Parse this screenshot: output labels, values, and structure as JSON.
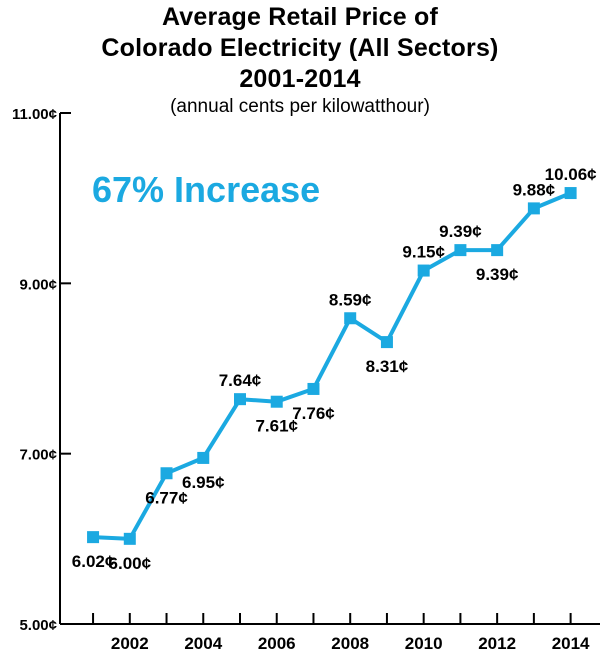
{
  "chart_data": {
    "type": "line",
    "title_lines": [
      "Average Retail Price of",
      "Colorado Electricity (All Sectors)",
      "2001-2014"
    ],
    "subtitle": "(annual cents per kilowatthour)",
    "x": [
      2001,
      2002,
      2003,
      2004,
      2005,
      2006,
      2007,
      2008,
      2009,
      2010,
      2011,
      2012,
      2013,
      2014
    ],
    "values": [
      6.02,
      6.0,
      6.77,
      6.95,
      7.64,
      7.61,
      7.76,
      8.59,
      8.31,
      9.15,
      9.39,
      9.39,
      9.88,
      10.06
    ],
    "data_labels": [
      "6.02¢",
      "6.00¢",
      "6.77¢",
      "6.95¢",
      "7.64¢",
      "7.61¢",
      "7.76¢",
      "8.59¢",
      "8.31¢",
      "9.15¢",
      "9.39¢",
      "9.39¢",
      "9.88¢",
      "10.06¢"
    ],
    "label_positions": [
      "below",
      "below",
      "below",
      "below",
      "above",
      "below",
      "below",
      "above",
      "below",
      "above",
      "above",
      "below",
      "above",
      "above"
    ],
    "xticks": [
      2002,
      2004,
      2006,
      2008,
      2010,
      2012,
      2014
    ],
    "xtick_labels": [
      "2002",
      "2004",
      "2006",
      "2008",
      "2010",
      "2012",
      "2014"
    ],
    "yticks": [
      5,
      7,
      9,
      11
    ],
    "ytick_labels": [
      "5.00¢",
      "7.00¢",
      "9.00¢",
      "11.00¢"
    ],
    "ylim": [
      5,
      11
    ],
    "xlim": [
      2000.1,
      2014.8
    ],
    "annotation": "67% Increase",
    "grid": false,
    "legend": "none",
    "colors": {
      "line": "#1ba9e1",
      "annotation": "#1ba9e1",
      "axis": "#000000",
      "text": "#000000"
    }
  }
}
